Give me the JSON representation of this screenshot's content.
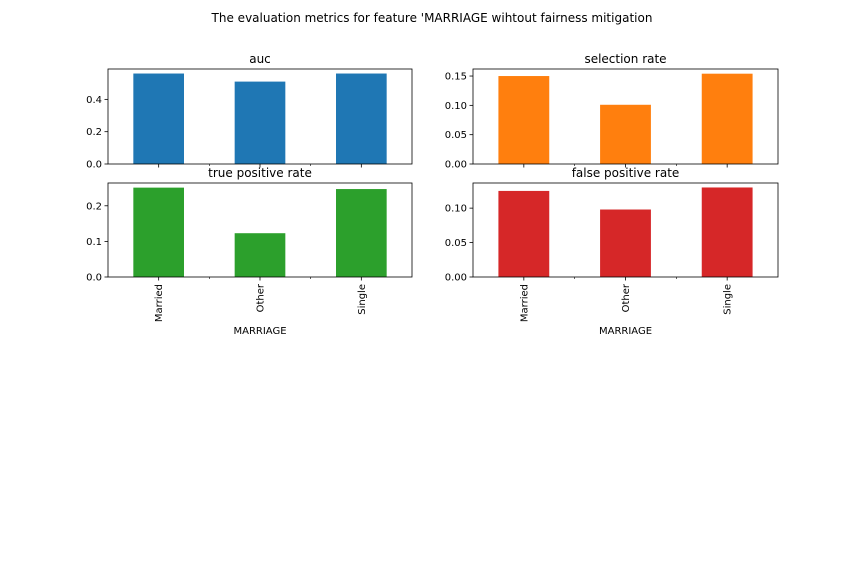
{
  "figure": {
    "suptitle": "The evaluation metrics for feature 'MARRIAGE wihtout fairness mitigation"
  },
  "chart_data": [
    {
      "type": "bar",
      "title": "auc",
      "categories": [
        "Married",
        "Other",
        "Single"
      ],
      "values": [
        0.56,
        0.51,
        0.56
      ],
      "color": "#1f77b4",
      "ylim": [
        0,
        0.588
      ],
      "yticks": [
        0.0,
        0.2,
        0.4
      ],
      "ytick_labels": [
        "0.0",
        "0.2",
        "0.4"
      ],
      "xlabel": "",
      "show_xticklabels": false
    },
    {
      "type": "bar",
      "title": "selection rate",
      "categories": [
        "Married",
        "Other",
        "Single"
      ],
      "values": [
        0.15,
        0.101,
        0.154
      ],
      "color": "#ff7f0e",
      "ylim": [
        0,
        0.162
      ],
      "yticks": [
        0.0,
        0.05,
        0.1,
        0.15
      ],
      "ytick_labels": [
        "0.00",
        "0.05",
        "0.10",
        "0.15"
      ],
      "xlabel": "",
      "show_xticklabels": false
    },
    {
      "type": "bar",
      "title": "true positive rate",
      "categories": [
        "Married",
        "Other",
        "Single"
      ],
      "values": [
        0.251,
        0.123,
        0.247
      ],
      "color": "#2ca02c",
      "ylim": [
        0,
        0.264
      ],
      "yticks": [
        0.0,
        0.1,
        0.2
      ],
      "ytick_labels": [
        "0.0",
        "0.1",
        "0.2"
      ],
      "xlabel": "MARRIAGE",
      "show_xticklabels": true
    },
    {
      "type": "bar",
      "title": "false positive rate",
      "categories": [
        "Married",
        "Other",
        "Single"
      ],
      "values": [
        0.125,
        0.098,
        0.13
      ],
      "color": "#d62728",
      "ylim": [
        0,
        0.1365
      ],
      "yticks": [
        0.0,
        0.05,
        0.1
      ],
      "ytick_labels": [
        "0.00",
        "0.05",
        "0.10"
      ],
      "xlabel": "MARRIAGE",
      "show_xticklabels": true
    }
  ]
}
